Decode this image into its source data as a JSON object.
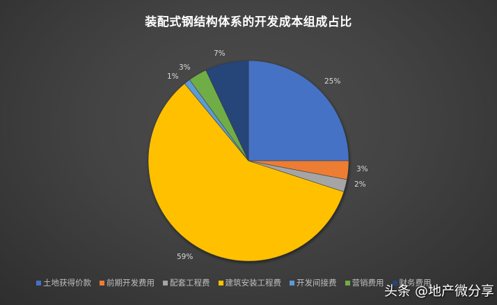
{
  "chart_data": {
    "type": "pie",
    "title": "装配式钢结构体系的开发成本组成占比",
    "categories": [
      "土地获得价款",
      "前期开发费用",
      "配套工程费",
      "建筑安装工程费",
      "开发间接费",
      "营销费用",
      "财务费用"
    ],
    "values": [
      25,
      3,
      2,
      59,
      1,
      3,
      7
    ],
    "value_labels": [
      "25%",
      "3%",
      "2%",
      "59%",
      "1%",
      "3%",
      "7%"
    ],
    "colors": [
      "#4472c4",
      "#ed7d31",
      "#a5a5a5",
      "#ffc000",
      "#5b9bd5",
      "#70ad47",
      "#264478"
    ],
    "start_angle": "12 o'clock, clockwise",
    "legend_position": "bottom"
  },
  "title": "装配式钢结构体系的开发成本组成占比",
  "legend": [
    {
      "label": "土地获得价款",
      "color": "#4472c4"
    },
    {
      "label": "前期开发费用",
      "color": "#ed7d31"
    },
    {
      "label": "配套工程费",
      "color": "#a5a5a5"
    },
    {
      "label": "建筑安装工程费",
      "color": "#ffc000"
    },
    {
      "label": "开发间接费",
      "color": "#5b9bd5"
    },
    {
      "label": "营销费用",
      "color": "#70ad47"
    },
    {
      "label": "财务费用",
      "color": "#264478"
    }
  ],
  "labels": {
    "l0": "25%",
    "l1": "3%",
    "l2": "2%",
    "l3": "59%",
    "l4": "1%",
    "l5": "3%",
    "l6": "7%"
  },
  "watermark": "头条 @地产微分享"
}
